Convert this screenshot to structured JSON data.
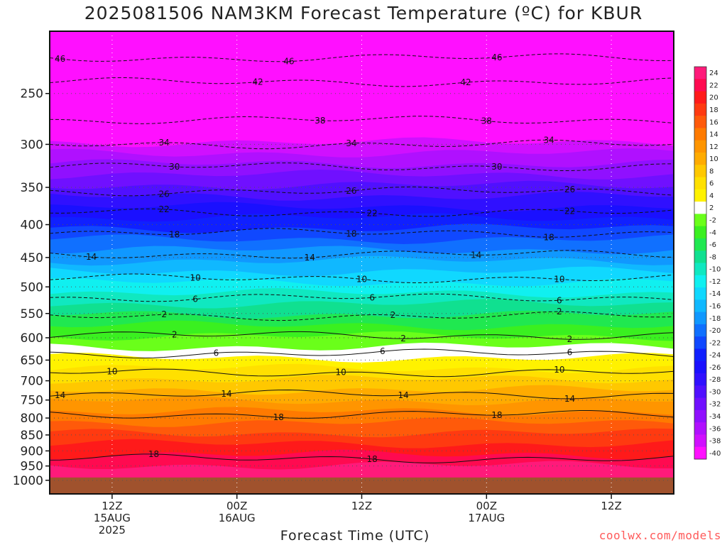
{
  "title": "2025081506 NAM3KM Forecast Temperature (ºC) for KBUR",
  "credit": "coolwx.com/models",
  "chart_data": {
    "type": "heatmap",
    "title": "2025081506 NAM3KM Forecast Temperature (ºC) for KBUR",
    "xlabel": "Forecast Time (UTC)",
    "ylabel": "",
    "x_range_hours": [
      0,
      60
    ],
    "y_range_hpa": [
      1050,
      200
    ],
    "y_scale": "log-pressure",
    "y_ticks": [
      250,
      300,
      350,
      400,
      450,
      500,
      550,
      600,
      650,
      700,
      750,
      800,
      850,
      900,
      950,
      1000
    ],
    "x_ticks": [
      {
        "hour": 6,
        "line1": "12Z",
        "line2": "15AUG",
        "line3": "2025"
      },
      {
        "hour": 18,
        "line1": "00Z",
        "line2": "16AUG",
        "line3": ""
      },
      {
        "hour": 30,
        "line1": "12Z",
        "line2": "",
        "line3": ""
      },
      {
        "hour": 42,
        "line1": "00Z",
        "line2": "17AUG",
        "line3": ""
      },
      {
        "hour": 54,
        "line1": "12Z",
        "line2": "",
        "line3": ""
      }
    ],
    "surface_pressure_hpa": 990,
    "grid": true,
    "colorbar": {
      "placement": "right",
      "labels": [
        24,
        22,
        20,
        18,
        16,
        14,
        12,
        10,
        8,
        6,
        4,
        2,
        -2,
        -4,
        -6,
        -8,
        -10,
        -12,
        -14,
        -16,
        -18,
        -20,
        -22,
        -24,
        -26,
        -28,
        -30,
        -32,
        -34,
        -36,
        -38,
        -40
      ],
      "colors": [
        "#ff1a7a",
        "#ff0a50",
        "#ff1a1a",
        "#ff3a10",
        "#ff5a0a",
        "#ff7a00",
        "#ff9500",
        "#ffab00",
        "#ffc800",
        "#ffe000",
        "#fff200",
        "#ffffff",
        "#6aff1a",
        "#3af020",
        "#20e850",
        "#10e090",
        "#10e8c0",
        "#10f0f0",
        "#10d8ff",
        "#10b8ff",
        "#1098ff",
        "#1070ff",
        "#1048ff",
        "#1020ff",
        "#1a10ff",
        "#3010ff",
        "#5010ff",
        "#7010ff",
        "#9010ff",
        "#b010ff",
        "#d010ff",
        "#ff10ff"
      ]
    },
    "contours": [
      {
        "value": 46,
        "pressure_hpa": 220,
        "dash": true,
        "labels_at_hours": [
          1,
          23,
          43
        ]
      },
      {
        "value": 42,
        "pressure_hpa": 240,
        "dash": true,
        "labels_at_hours": [
          20,
          40
        ]
      },
      {
        "value": 38,
        "pressure_hpa": 275,
        "dash": true,
        "labels_at_hours": [
          26,
          42
        ]
      },
      {
        "value": 34,
        "pressure_hpa": 300,
        "dash": true,
        "labels_at_hours": [
          11,
          29,
          48
        ]
      },
      {
        "value": 30,
        "pressure_hpa": 325,
        "dash": true,
        "labels_at_hours": [
          12,
          43
        ]
      },
      {
        "value": 26,
        "pressure_hpa": 355,
        "dash": true,
        "labels_at_hours": [
          11,
          29,
          50
        ]
      },
      {
        "value": 22,
        "pressure_hpa": 383,
        "dash": true,
        "labels_at_hours": [
          11,
          31,
          50
        ]
      },
      {
        "value": 18,
        "pressure_hpa": 412,
        "dash": true,
        "labels_at_hours": [
          12,
          29,
          48
        ]
      },
      {
        "value": 14,
        "pressure_hpa": 445,
        "dash": true,
        "labels_at_hours": [
          4,
          25,
          41
        ]
      },
      {
        "value": 10,
        "pressure_hpa": 485,
        "dash": true,
        "labels_at_hours": [
          14,
          30,
          49
        ]
      },
      {
        "value": 6,
        "pressure_hpa": 520,
        "dash": true,
        "labels_at_hours": [
          14,
          31,
          49
        ]
      },
      {
        "value": 2,
        "pressure_hpa": 555,
        "dash": true,
        "labels_at_hours": [
          11,
          33,
          49
        ]
      },
      {
        "value": 2,
        "pressure_hpa": 595,
        "dash": false,
        "labels_at_hours": [
          12,
          34,
          50
        ]
      },
      {
        "value": 6,
        "pressure_hpa": 635,
        "dash": false,
        "labels_at_hours": [
          16,
          32,
          50
        ]
      },
      {
        "value": 10,
        "pressure_hpa": 680,
        "dash": false,
        "labels_at_hours": [
          6,
          28,
          49
        ]
      },
      {
        "value": 14,
        "pressure_hpa": 735,
        "dash": false,
        "labels_at_hours": [
          1,
          17,
          34,
          50
        ]
      },
      {
        "value": 18,
        "pressure_hpa": 790,
        "dash": false,
        "labels_at_hours": [
          22,
          43
        ]
      },
      {
        "value": 18,
        "pressure_hpa": 925,
        "dash": false,
        "labels_at_hours": [
          10,
          31
        ]
      }
    ]
  }
}
